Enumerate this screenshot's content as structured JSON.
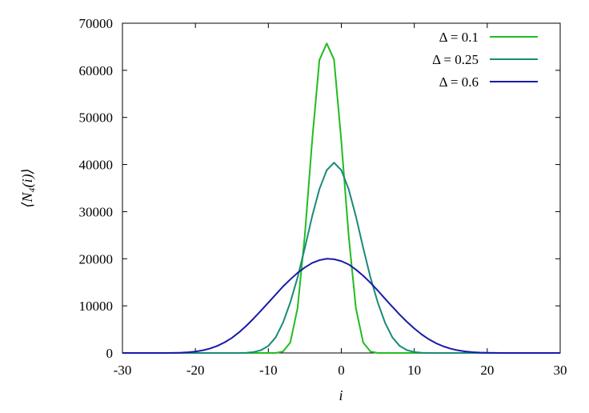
{
  "chart_data": {
    "type": "line",
    "xlabel": "i",
    "ylabel": "⟨N₄(i)⟩",
    "xlim": [
      -30,
      30
    ],
    "ylim": [
      0,
      70000
    ],
    "xticks": [
      -30,
      -20,
      -10,
      0,
      10,
      20,
      30
    ],
    "yticks": [
      0,
      10000,
      20000,
      30000,
      40000,
      50000,
      60000,
      70000
    ],
    "grid": false,
    "legend_position": "top-right",
    "series": [
      {
        "name": "Δ = 0.1",
        "color": "#22bb22",
        "x": [
          -30,
          -29,
          -28,
          -27,
          -26,
          -25,
          -24,
          -23,
          -22,
          -21,
          -20,
          -19,
          -18,
          -17,
          -16,
          -15,
          -14,
          -13,
          -12,
          -11,
          -10,
          -9,
          -8,
          -7,
          -6,
          -5,
          -4,
          -3,
          -2,
          -1,
          0,
          1,
          2,
          3,
          4,
          5,
          6,
          7,
          8,
          9,
          10,
          11,
          12,
          13,
          14,
          15,
          16,
          17,
          18,
          19,
          20,
          21,
          22,
          23,
          24,
          25,
          26,
          27,
          28,
          29,
          30
        ],
        "y": [
          0,
          0,
          0,
          0,
          0,
          0,
          0,
          0,
          0,
          0,
          0,
          0,
          0,
          0,
          0,
          0,
          0,
          0,
          0,
          0,
          0,
          0,
          300,
          2200,
          9500,
          25000,
          45000,
          62200,
          65700,
          62300,
          45000,
          25000,
          9500,
          2200,
          300,
          0,
          0,
          0,
          0,
          0,
          0,
          0,
          0,
          0,
          0,
          0,
          0,
          0,
          0,
          0,
          0,
          0,
          0,
          0,
          0,
          0,
          0,
          0,
          0,
          0,
          0
        ]
      },
      {
        "name": "Δ = 0.25",
        "color": "#1a8a7a",
        "x": [
          -30,
          -29,
          -28,
          -27,
          -26,
          -25,
          -24,
          -23,
          -22,
          -21,
          -20,
          -19,
          -18,
          -17,
          -16,
          -15,
          -14,
          -13,
          -12,
          -11,
          -10,
          -9,
          -8,
          -7,
          -6,
          -5,
          -4,
          -3,
          -2,
          -1,
          0,
          1,
          2,
          3,
          4,
          5,
          6,
          7,
          8,
          9,
          10,
          11,
          12,
          13,
          14,
          15,
          16,
          17,
          18,
          19,
          20,
          21,
          22,
          23,
          24,
          25,
          26,
          27,
          28,
          29,
          30
        ],
        "y": [
          0,
          0,
          0,
          0,
          0,
          0,
          0,
          0,
          0,
          0,
          0,
          0,
          0,
          0,
          0,
          0,
          0,
          50,
          200,
          600,
          1500,
          3300,
          6400,
          10700,
          16000,
          22300,
          29000,
          34800,
          38800,
          40400,
          38800,
          34800,
          29000,
          22300,
          16000,
          10700,
          6400,
          3300,
          1500,
          600,
          200,
          50,
          0,
          0,
          0,
          0,
          0,
          0,
          0,
          0,
          0,
          0,
          0,
          0,
          0,
          0,
          0,
          0,
          0,
          0,
          0
        ]
      },
      {
        "name": "Δ = 0.6",
        "color": "#1a1aaa",
        "x": [
          -30,
          -29,
          -28,
          -27,
          -26,
          -25,
          -24,
          -23,
          -22,
          -21,
          -20,
          -19,
          -18,
          -17,
          -16,
          -15,
          -14,
          -13,
          -12,
          -11,
          -10,
          -9,
          -8,
          -7,
          -6,
          -5,
          -4,
          -3,
          -2,
          -1,
          0,
          1,
          2,
          3,
          4,
          5,
          6,
          7,
          8,
          9,
          10,
          11,
          12,
          13,
          14,
          15,
          16,
          17,
          18,
          19,
          20,
          21,
          22,
          23,
          24,
          25,
          26,
          27,
          28,
          29,
          30
        ],
        "y": [
          0,
          0,
          0,
          0,
          0,
          0,
          0,
          20,
          60,
          150,
          300,
          550,
          950,
          1500,
          2250,
          3200,
          4400,
          5800,
          7350,
          9000,
          10700,
          12400,
          14100,
          15600,
          17000,
          18150,
          19100,
          19700,
          20000,
          19900,
          19500,
          18800,
          17700,
          16400,
          14900,
          13250,
          11500,
          9800,
          8150,
          6600,
          5200,
          3950,
          2900,
          2050,
          1400,
          900,
          550,
          320,
          180,
          90,
          40,
          15,
          0,
          0,
          0,
          0,
          0,
          0,
          0,
          0,
          0
        ]
      }
    ]
  }
}
